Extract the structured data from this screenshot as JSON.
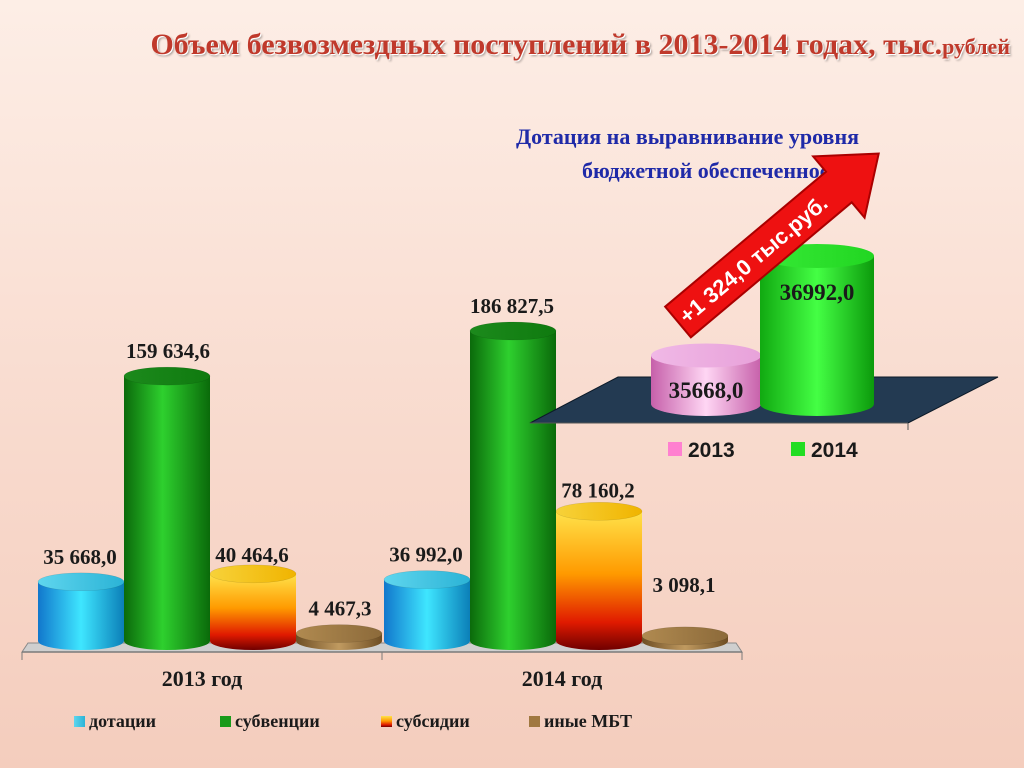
{
  "title": {
    "main": "Объем безвозмездных поступлений  в 2013-2014 годах, тыс.",
    "unit": "рублей"
  },
  "chart_data": [
    {
      "type": "bar",
      "categories": [
        "2013 год",
        "2014 год"
      ],
      "series": [
        {
          "name": "дотации",
          "values": [
            35668.0,
            36992.0
          ],
          "labels": [
            "35 668,0",
            "36 992,0"
          ],
          "color": "#1fc6e0"
        },
        {
          "name": "субвенции",
          "values": [
            159634.6,
            186827.5
          ],
          "labels": [
            "159 634,6",
            "186 827,5"
          ],
          "color": "#1a9a1a"
        },
        {
          "name": "субсидии",
          "values": [
            40464.6,
            78160.2
          ],
          "labels": [
            "40 464,6",
            "78 160,2"
          ],
          "color": "#f0a000"
        },
        {
          "name": "иные МБТ",
          "values": [
            4467.3,
            3098.1
          ],
          "labels": [
            "4 467,3",
            "3 098,1"
          ],
          "color": "#a07840"
        }
      ],
      "legend_position": "bottom",
      "grid": false
    },
    {
      "type": "bar",
      "title_line1": "Дотация на выравнивание уровня",
      "title_line2": "бюджетной обеспеченности",
      "categories": [
        "2013",
        "2014"
      ],
      "values": [
        35668.0,
        36992.0
      ],
      "labels": [
        "35668,0",
        "36992,0"
      ],
      "colors": [
        "#f08ad0",
        "#22dd22"
      ],
      "annotation": "+1 324,0 тыс.руб.",
      "legend_position": "bottom"
    }
  ]
}
